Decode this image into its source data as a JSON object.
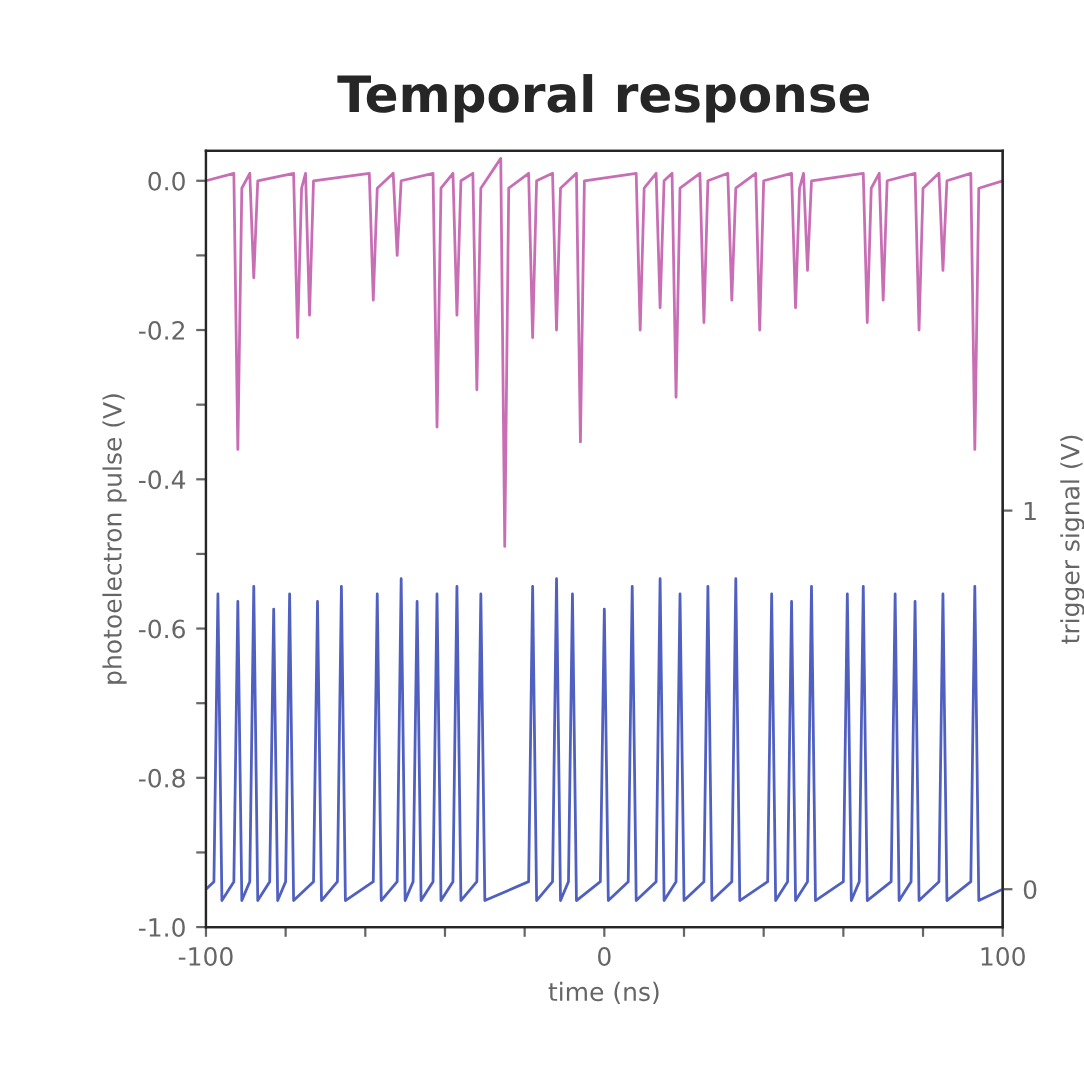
{
  "chart_data": {
    "type": "line",
    "title": "Temporal response",
    "xlabel": "time (ns)",
    "ylabel": "photoelectron pulse (V)",
    "y2label": "trigger signal (V)",
    "xlim": [
      -100,
      100
    ],
    "xticks": [
      -100,
      {
        "value": -80,
        "label": null
      },
      {
        "value": -60,
        "label": null
      },
      {
        "value": -40,
        "label": null
      },
      {
        "value": -20,
        "label": null
      },
      0,
      {
        "value": 20,
        "label": null
      },
      {
        "value": 40,
        "label": null
      },
      {
        "value": 60,
        "label": null
      },
      {
        "value": 80,
        "label": null
      },
      100
    ],
    "ylim": [
      -1.0,
      0.04
    ],
    "yticks": [
      {
        "value": -1,
        "label": "-1.0"
      },
      {
        "value": -0.9,
        "label": null
      },
      -0.8,
      {
        "value": -0.7,
        "label": null
      },
      -0.6,
      {
        "value": -0.5,
        "label": null
      },
      -0.4,
      {
        "value": -0.3,
        "label": null
      },
      -0.2,
      {
        "value": -0.1,
        "label": null
      },
      {
        "value": 0,
        "label": "0.0"
      }
    ],
    "y2lim": [
      -0.1,
      1.95
    ],
    "y2ticks": [
      0,
      1
    ],
    "grid": false,
    "marker": "none",
    "line_style": "solid",
    "series": [
      {
        "color": "#c86eb4",
        "x": [
          -100,
          -93,
          -92,
          -91,
          -89,
          -88,
          -87,
          -78,
          -77,
          -76,
          -75,
          -74,
          -73,
          -59,
          -58,
          -57,
          -53,
          -52,
          -51,
          -43,
          -42,
          -41,
          -38,
          -37,
          -36,
          -33,
          -32,
          -31,
          -26,
          -25,
          -24,
          -19,
          -18,
          -17,
          -13,
          -12,
          -11,
          -7,
          -6,
          -5,
          8,
          9,
          10,
          13,
          14,
          15,
          17,
          18,
          19,
          24,
          25,
          26,
          31,
          32,
          33,
          38,
          39,
          40,
          47,
          48,
          49,
          50,
          51,
          52,
          65,
          66,
          67,
          69,
          70,
          71,
          78,
          79,
          80,
          84,
          85,
          86,
          92,
          93,
          94,
          100
        ],
        "values": [
          0.0,
          0.01,
          -0.36,
          -0.01,
          0.01,
          -0.13,
          0.0,
          0.01,
          -0.21,
          -0.01,
          0.01,
          -0.18,
          0.0,
          0.01,
          -0.16,
          -0.01,
          0.01,
          -0.1,
          0.0,
          0.01,
          -0.33,
          -0.01,
          0.01,
          -0.18,
          0.0,
          0.01,
          -0.28,
          -0.01,
          0.03,
          -0.49,
          -0.01,
          0.01,
          -0.21,
          0.0,
          0.01,
          -0.2,
          -0.01,
          0.01,
          -0.35,
          0.0,
          0.01,
          -0.2,
          -0.01,
          0.01,
          -0.17,
          0.0,
          0.01,
          -0.29,
          -0.01,
          0.01,
          -0.19,
          0.0,
          0.01,
          -0.16,
          -0.01,
          0.01,
          -0.2,
          0.0,
          0.01,
          -0.17,
          -0.01,
          0.01,
          -0.12,
          0.0,
          0.01,
          -0.19,
          -0.01,
          0.01,
          -0.16,
          0.0,
          0.01,
          -0.2,
          -0.01,
          0.01,
          -0.12,
          0.0,
          0.01,
          -0.36,
          -0.01,
          0.0
        ]
      },
      {
        "color": "#5060c0",
        "axis": "y2",
        "x": [
          -100,
          -98,
          -97,
          -96,
          -93,
          -92,
          -91,
          -89,
          -88,
          -87,
          -84,
          -83,
          -82,
          -80,
          -79,
          -78,
          -73,
          -72,
          -71,
          -67,
          -66,
          -65,
          -58,
          -57,
          -56,
          -52,
          -51,
          -50,
          -48,
          -47,
          -46,
          -43,
          -42,
          -41,
          -38,
          -37,
          -36,
          -32,
          -31,
          -30,
          -19,
          -18,
          -17,
          -13,
          -12,
          -11,
          -9,
          -8,
          -7,
          -1,
          0,
          1,
          6,
          7,
          8,
          13,
          14,
          15,
          18,
          19,
          20,
          25,
          26,
          27,
          32,
          33,
          34,
          41,
          42,
          43,
          46,
          47,
          48,
          51,
          52,
          53,
          60,
          61,
          62,
          64,
          65,
          66,
          72,
          73,
          74,
          77,
          78,
          79,
          84,
          85,
          86,
          92,
          93,
          94,
          100
        ],
        "values": [
          0.0,
          0.02,
          0.78,
          -0.03,
          0.02,
          0.76,
          -0.03,
          0.02,
          0.8,
          -0.03,
          0.02,
          0.74,
          -0.03,
          0.02,
          0.78,
          -0.03,
          0.02,
          0.76,
          -0.03,
          0.02,
          0.8,
          -0.03,
          0.02,
          0.78,
          -0.03,
          0.02,
          0.82,
          -0.03,
          0.02,
          0.76,
          -0.03,
          0.02,
          0.78,
          -0.03,
          0.02,
          0.8,
          -0.03,
          0.02,
          0.78,
          -0.03,
          0.02,
          0.8,
          -0.03,
          0.02,
          0.82,
          -0.03,
          0.02,
          0.78,
          -0.03,
          0.02,
          0.74,
          -0.03,
          0.02,
          0.8,
          -0.03,
          0.02,
          0.82,
          -0.03,
          0.02,
          0.78,
          -0.03,
          0.02,
          0.8,
          -0.03,
          0.02,
          0.82,
          -0.03,
          0.02,
          0.78,
          -0.03,
          0.02,
          0.76,
          -0.03,
          0.02,
          0.8,
          -0.03,
          0.02,
          0.78,
          -0.03,
          0.02,
          0.8,
          -0.03,
          0.02,
          0.78,
          -0.03,
          0.02,
          0.76,
          -0.03,
          0.02,
          0.78,
          -0.03,
          0.02,
          0.8,
          -0.03,
          0.0
        ]
      }
    ]
  }
}
